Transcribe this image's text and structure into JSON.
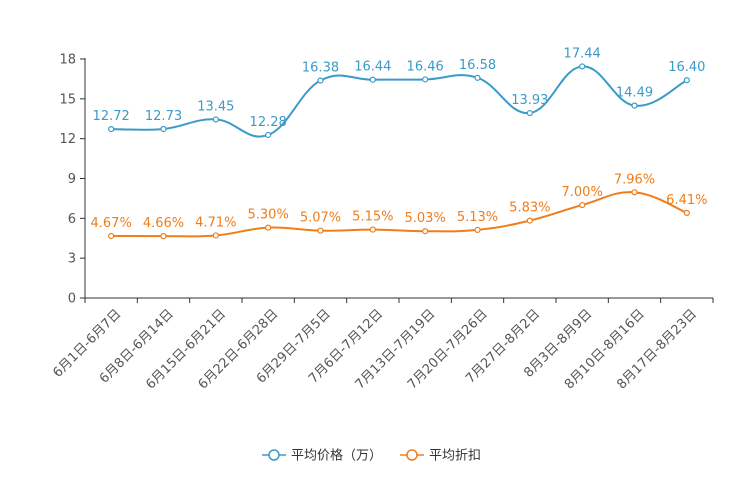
{
  "chart_data": {
    "type": "line",
    "categories": [
      "6月1日-6月7日",
      "6月8日-6月14日",
      "6月15日-6月21日",
      "6月22日-6月28日",
      "6月29日-7月5日",
      "7月6日-7月12日",
      "7月13日-7月19日",
      "7月20日-7月26日",
      "7月27日-8月2日",
      "8月3日-8月9日",
      "8月10日-8月16日",
      "8月17日-8月23日"
    ],
    "series": [
      {
        "name": "平均价格（万）",
        "color": "#3a9bc9",
        "values": [
          12.72,
          12.73,
          13.45,
          12.28,
          16.38,
          16.44,
          16.46,
          16.58,
          13.93,
          17.44,
          14.49,
          16.4
        ],
        "labels": [
          "12.72",
          "12.73",
          "13.45",
          "12.28",
          "16.38",
          "16.44",
          "16.46",
          "16.58",
          "13.93",
          "17.44",
          "14.49",
          "16.40"
        ]
      },
      {
        "name": "平均折扣",
        "color": "#f07d1a",
        "values": [
          4.67,
          4.66,
          4.71,
          5.3,
          5.07,
          5.15,
          5.03,
          5.13,
          5.83,
          7.0,
          7.96,
          6.41
        ],
        "labels": [
          "4.67%",
          "4.66%",
          "4.71%",
          "5.30%",
          "5.07%",
          "5.15%",
          "5.03%",
          "5.13%",
          "5.83%",
          "7.00%",
          "7.96%",
          "6.41%"
        ]
      }
    ],
    "yticks": [
      "0",
      "3",
      "6",
      "9",
      "12",
      "15",
      "18"
    ],
    "ylim": [
      0,
      18
    ],
    "grid": false,
    "legend_position": "bottom-center"
  }
}
